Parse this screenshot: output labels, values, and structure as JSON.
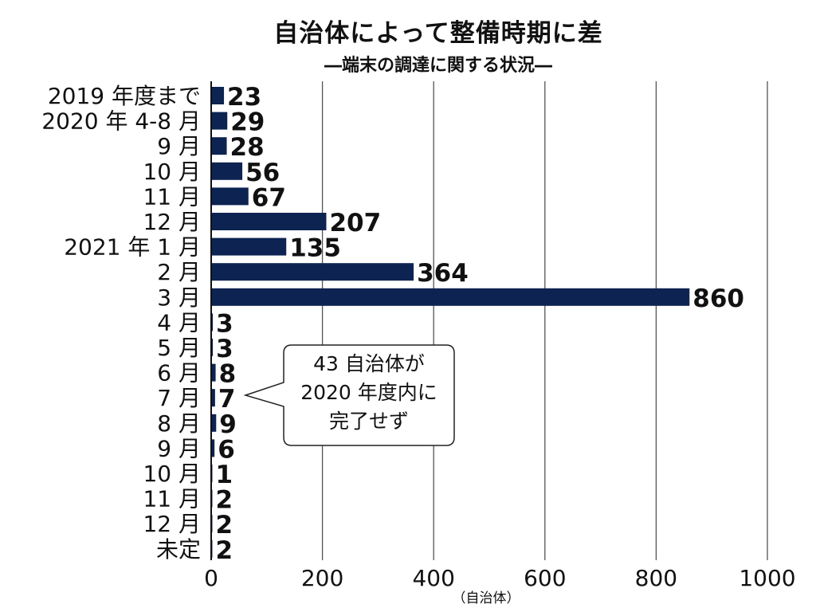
{
  "title": "自治体によって整備時期に差",
  "subtitle": "―端末の調達に関する状況―",
  "chart_data": {
    "type": "bar",
    "orientation": "horizontal",
    "categories": [
      "2019 年度まで",
      "2020 年 4-8 月",
      "9 月",
      "10 月",
      "11 月",
      "12 月",
      "2021 年 1 月",
      "2 月",
      "3 月",
      "4 月",
      "5 月",
      "6 月",
      "7 月",
      "8 月",
      "9 月",
      "10 月",
      "11 月",
      "12 月",
      "未定"
    ],
    "values": [
      23,
      29,
      28,
      56,
      67,
      207,
      135,
      364,
      860,
      3,
      3,
      8,
      7,
      9,
      6,
      1,
      2,
      2,
      2
    ],
    "xlim": [
      0,
      1000
    ],
    "xticks": [
      0,
      200,
      400,
      600,
      800,
      1000
    ],
    "xlabel": "（自治体）",
    "grid": true,
    "legend": "none",
    "bar_color": "#0d2352"
  },
  "callout": {
    "lines": [
      "43 自治体が",
      "2020 年度内に",
      "完了せず"
    ]
  }
}
